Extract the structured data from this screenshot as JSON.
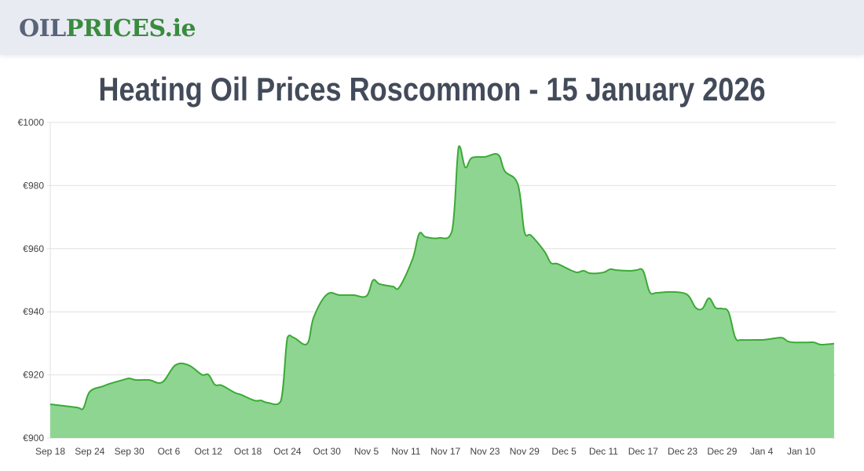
{
  "header": {
    "logo_part1": "OIL",
    "logo_part2": "PRICES.ie",
    "colors": {
      "logo_dark": "#586478",
      "logo_green": "#3a8b3e",
      "bg": "#e9ebf3"
    }
  },
  "page": {
    "title": "Heating Oil Prices Roscommon - 15 January 2026"
  },
  "chart_data": {
    "type": "area",
    "title": "Heating Oil Prices Roscommon - 15 January 2026",
    "xlabel": "",
    "ylabel": "",
    "ylim": [
      900,
      1000
    ],
    "yticks": [
      "€900",
      "€920",
      "€940",
      "€960",
      "€980",
      "€1000"
    ],
    "ytick_values": [
      900,
      920,
      940,
      960,
      980,
      1000
    ],
    "xticks": [
      "Sep 18",
      "Sep 24",
      "Sep 30",
      "Oct 6",
      "Oct 12",
      "Oct 18",
      "Oct 24",
      "Oct 30",
      "Nov 5",
      "Nov 11",
      "Nov 17",
      "Nov 23",
      "Nov 29",
      "Dec 5",
      "Dec 11",
      "Dec 17",
      "Dec 23",
      "Dec 29",
      "Jan 4",
      "Jan 10"
    ],
    "grid": true,
    "legend": "none",
    "colors": {
      "line": "#3aaa35",
      "fill": "#8fd592",
      "grid": "#e0e0e0"
    },
    "x_day_offset_note": "x = days since Sep 18",
    "points": [
      [
        0,
        910.7
      ],
      [
        4,
        909.7
      ],
      [
        5,
        909.4
      ],
      [
        6,
        914.7
      ],
      [
        8,
        916.4
      ],
      [
        9,
        917.2
      ],
      [
        11,
        918.4
      ],
      [
        12,
        918.9
      ],
      [
        13,
        918.4
      ],
      [
        15,
        918.4
      ],
      [
        17,
        917.7
      ],
      [
        19,
        923.1
      ],
      [
        21,
        923.1
      ],
      [
        23,
        920.1
      ],
      [
        24,
        920.1
      ],
      [
        25,
        916.9
      ],
      [
        26,
        916.7
      ],
      [
        28,
        914.4
      ],
      [
        29,
        913.7
      ],
      [
        31,
        911.9
      ],
      [
        32,
        911.9
      ],
      [
        33,
        911.2
      ],
      [
        35,
        911.7
      ],
      [
        36,
        931.8
      ],
      [
        37,
        931.8
      ],
      [
        39,
        929.9
      ],
      [
        40,
        938.3
      ],
      [
        42,
        945.5
      ],
      [
        44,
        945.3
      ],
      [
        46,
        945.3
      ],
      [
        48,
        945.0
      ],
      [
        49,
        950.0
      ],
      [
        50,
        948.8
      ],
      [
        52,
        948.0
      ],
      [
        53,
        947.8
      ],
      [
        55,
        956.7
      ],
      [
        56,
        964.7
      ],
      [
        57,
        963.7
      ],
      [
        59,
        963.4
      ],
      [
        61,
        965.7
      ],
      [
        62,
        992.3
      ],
      [
        63,
        985.8
      ],
      [
        64,
        988.8
      ],
      [
        66,
        989.1
      ],
      [
        68,
        989.8
      ],
      [
        69,
        984.6
      ],
      [
        71,
        980.3
      ],
      [
        72,
        965.2
      ],
      [
        73,
        964.2
      ],
      [
        75,
        959.2
      ],
      [
        76,
        955.5
      ],
      [
        77,
        955.2
      ],
      [
        79,
        953.2
      ],
      [
        80,
        952.5
      ],
      [
        81,
        953.0
      ],
      [
        82,
        952.2
      ],
      [
        84,
        952.5
      ],
      [
        85,
        953.5
      ],
      [
        86,
        953.2
      ],
      [
        88,
        953.0
      ],
      [
        89,
        953.2
      ],
      [
        90,
        953.0
      ],
      [
        91,
        946.3
      ],
      [
        92,
        946.0
      ],
      [
        94,
        946.3
      ],
      [
        96,
        946.0
      ],
      [
        97,
        944.8
      ],
      [
        98,
        941.3
      ],
      [
        99,
        941.0
      ],
      [
        100,
        944.3
      ],
      [
        101,
        941.3
      ],
      [
        102,
        941.0
      ],
      [
        103,
        939.8
      ],
      [
        104,
        931.8
      ],
      [
        105,
        931.1
      ],
      [
        107,
        931.1
      ],
      [
        108,
        931.1
      ],
      [
        109,
        931.3
      ],
      [
        111,
        931.8
      ],
      [
        112,
        930.6
      ],
      [
        113,
        930.3
      ],
      [
        115,
        930.3
      ],
      [
        116,
        930.3
      ],
      [
        117,
        929.6
      ],
      [
        119,
        929.9
      ]
    ],
    "x_range_days": [
      0,
      119
    ]
  }
}
